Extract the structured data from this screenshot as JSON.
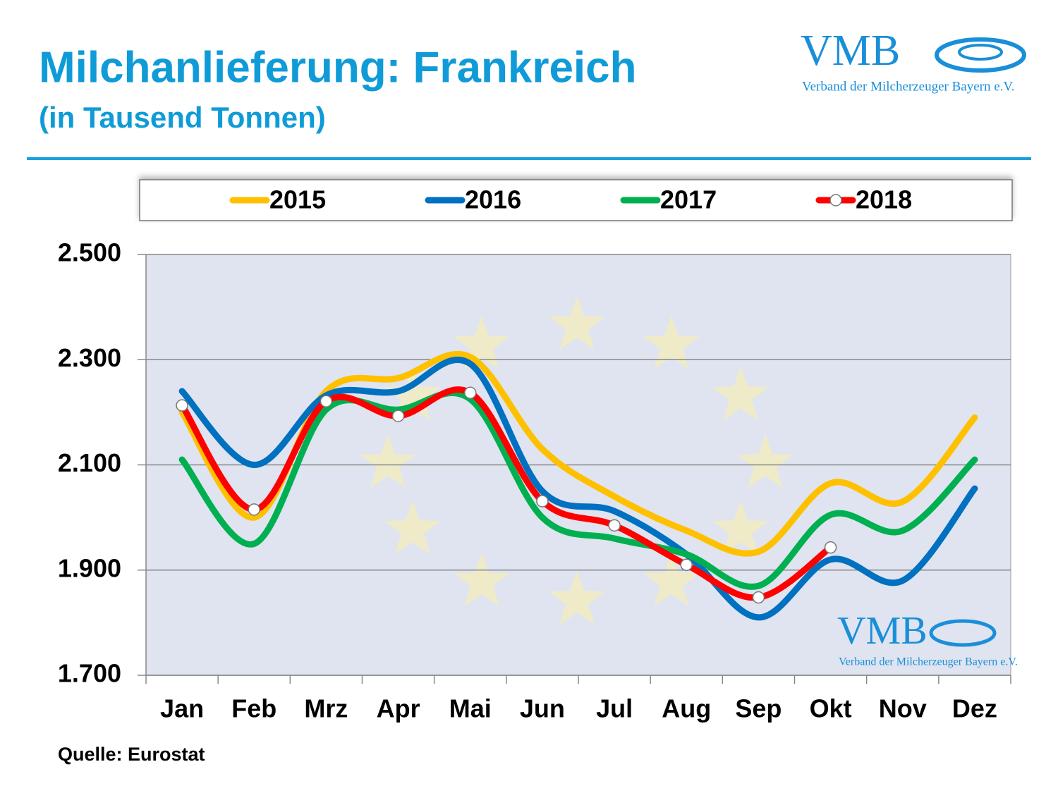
{
  "logo": {
    "name": "VMB",
    "subtitle": "Verband der Milcherzeuger Bayern e.V."
  },
  "chart_data": {
    "type": "line",
    "title": "Milchanlieferung: Frankreich",
    "subtitle": "(in Tausend Tonnen)",
    "source": "Quelle: Eurostat",
    "categories": [
      "Jan",
      "Feb",
      "Mrz",
      "Apr",
      "Mai",
      "Jun",
      "Jul",
      "Aug",
      "Sep",
      "Okt",
      "Nov",
      "Dez"
    ],
    "series": [
      {
        "name": "2015",
        "color": "#ffc000",
        "values": [
          2200,
          2000,
          2240,
          2265,
          2305,
          2130,
          2040,
          1975,
          1935,
          2065,
          2030,
          2190
        ]
      },
      {
        "name": "2016",
        "color": "#0070c0",
        "values": [
          2240,
          2100,
          2232,
          2240,
          2292,
          2050,
          2012,
          1930,
          1810,
          1920,
          1880,
          2055
        ]
      },
      {
        "name": "2017",
        "color": "#00b050",
        "values": [
          2110,
          1950,
          2205,
          2205,
          2225,
          2000,
          1960,
          1930,
          1870,
          2005,
          1975,
          2110
        ]
      },
      {
        "name": "2018",
        "color": "#ff0000",
        "markers": true,
        "values": [
          2213,
          2015,
          2221,
          2193,
          2237,
          2031,
          1985,
          1910,
          1848,
          1943,
          null,
          null
        ]
      }
    ],
    "ylim": [
      1700,
      2500
    ],
    "yticks": [
      {
        "value": 1700,
        "label": "1.700"
      },
      {
        "value": 1900,
        "label": "1.900"
      },
      {
        "value": 2100,
        "label": "2.100"
      },
      {
        "value": 2300,
        "label": "2.300"
      },
      {
        "value": 2500,
        "label": "2.500"
      }
    ],
    "grid": true,
    "smooth": true,
    "legend": "top"
  }
}
